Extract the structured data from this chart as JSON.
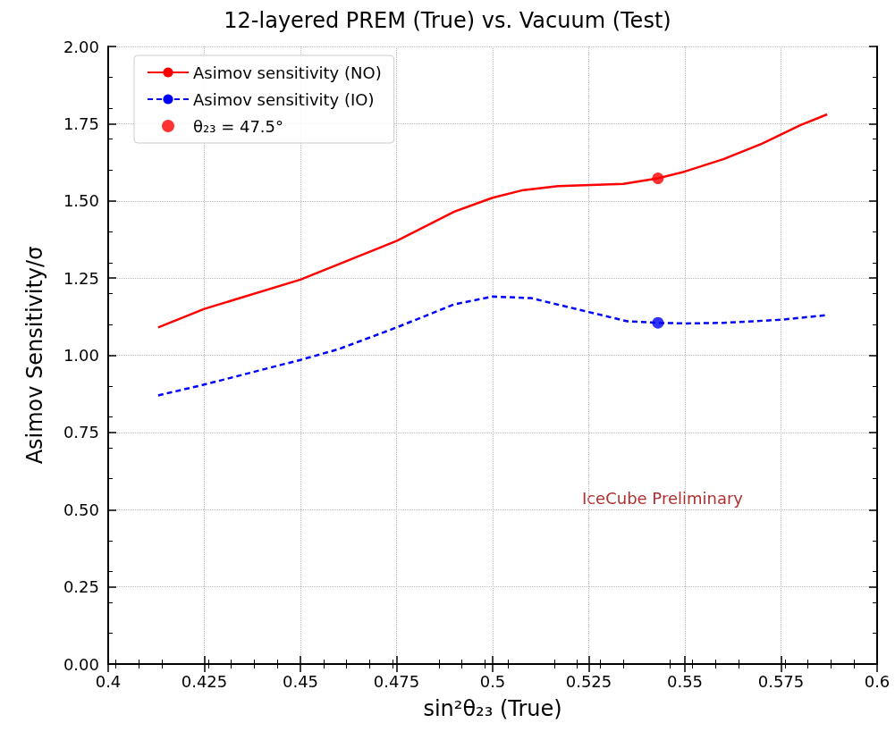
{
  "chart_data": {
    "type": "line",
    "title": "12-layered PREM (True) vs. Vacuum (Test)",
    "xlabel": "sin²θ₂₃ (True)",
    "ylabel": "Asimov Sensitivity/σ",
    "annotations": [
      "IceCube Preliminary"
    ],
    "xlim": [
      0.4,
      0.6
    ],
    "xticks": [
      0.4,
      0.425,
      0.45,
      0.475,
      0.5,
      0.525,
      0.55,
      0.575,
      0.6
    ],
    "ylim": [
      0,
      2
    ],
    "yticks": [
      {
        "value": 0,
        "label": "0.00"
      },
      {
        "value": 0.25,
        "label": "0.25"
      },
      {
        "value": 0.5,
        "label": "0.50"
      },
      {
        "value": 0.75,
        "label": "0.75"
      },
      {
        "value": 1,
        "label": "1.00"
      },
      {
        "value": 1.25,
        "label": "1.25"
      },
      {
        "value": 1.5,
        "label": "1.50"
      },
      {
        "value": 1.75,
        "label": "1.75"
      },
      {
        "value": 2,
        "label": "2.00"
      }
    ],
    "grid": true,
    "legend": "top left",
    "series": [
      {
        "name": "Asimov sensitivity (NO)",
        "color": "#ff0000",
        "line_style": "solid",
        "marker": "none",
        "x": [
          0.413,
          0.425,
          0.45,
          0.463,
          0.475,
          0.49,
          0.5,
          0.508,
          0.517,
          0.534,
          0.543,
          0.55,
          0.56,
          0.57,
          0.58,
          0.587
        ],
        "values": [
          1.09,
          1.15,
          1.245,
          1.31,
          1.37,
          1.465,
          1.51,
          1.535,
          1.548,
          1.555,
          1.573,
          1.595,
          1.635,
          1.685,
          1.745,
          1.78
        ]
      },
      {
        "name": "Asimov sensitivity (IO)",
        "color": "#0000ff",
        "line_style": "dashed",
        "marker": "none",
        "x": [
          0.413,
          0.425,
          0.45,
          0.46,
          0.475,
          0.49,
          0.5,
          0.51,
          0.525,
          0.535,
          0.543,
          0.55,
          0.56,
          0.575,
          0.587
        ],
        "values": [
          0.87,
          0.905,
          0.985,
          1.02,
          1.09,
          1.165,
          1.19,
          1.185,
          1.14,
          1.11,
          1.105,
          1.103,
          1.105,
          1.115,
          1.13
        ]
      },
      {
        "name": "θ₂₃ = 47.5°",
        "type": "scatter",
        "marker": "circle",
        "colors": [
          "#ff0000",
          "#0000ff"
        ],
        "x": [
          0.543,
          0.543
        ],
        "values": [
          1.573,
          1.105
        ]
      }
    ]
  }
}
